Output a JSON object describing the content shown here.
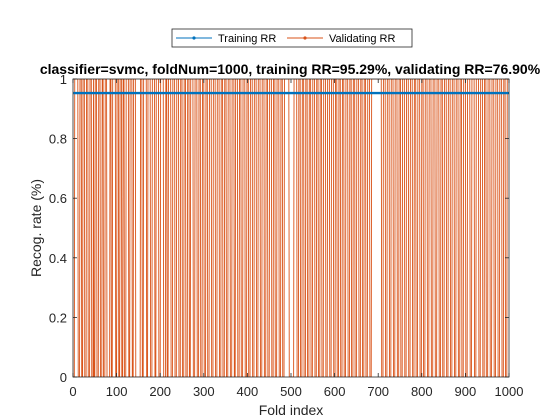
{
  "chart_data": {
    "type": "line",
    "title": "classifier=svmc, foldNum=1000, training RR=95.29%, validating RR=76.90%",
    "xlabel": "Fold index",
    "ylabel": "Recog. rate (%)",
    "xlim": [
      0,
      1000
    ],
    "ylim": [
      0,
      1
    ],
    "xticks": [
      0,
      100,
      200,
      300,
      400,
      500,
      600,
      700,
      800,
      900,
      1000
    ],
    "yticks": [
      0,
      0.2,
      0.4,
      0.6,
      0.8,
      1
    ],
    "xtick_labels": [
      "0",
      "100",
      "200",
      "300",
      "400",
      "500",
      "600",
      "700",
      "800",
      "900",
      "1000"
    ],
    "ytick_labels": [
      "0",
      "0.2",
      "0.4",
      "0.6",
      "0.8",
      "1"
    ],
    "grid": false,
    "legend_position": "top-center",
    "series": [
      {
        "name": "Training RR",
        "color": "#0072BD",
        "marker": "dot",
        "constant_value": 0.9529,
        "x_range": [
          1,
          1000
        ]
      },
      {
        "name": "Validating RR",
        "color": "#D95319",
        "marker": "dot",
        "values_are_binary": [
          0,
          1
        ],
        "zero_ranges": [
          [
            1,
            3
          ],
          [
            12,
            15
          ],
          [
            20,
            22
          ],
          [
            27,
            30
          ],
          [
            35,
            38
          ],
          [
            43,
            46
          ],
          [
            48,
            50
          ],
          [
            55,
            58
          ],
          [
            63,
            66
          ],
          [
            70,
            73
          ],
          [
            78,
            84
          ],
          [
            88,
            90
          ],
          [
            98,
            100
          ],
          [
            105,
            107
          ],
          [
            112,
            114
          ],
          [
            118,
            121
          ],
          [
            128,
            130
          ],
          [
            136,
            138
          ],
          [
            144,
            154
          ],
          [
            159,
            161
          ],
          [
            169,
            171
          ],
          [
            178,
            181
          ],
          [
            188,
            190
          ],
          [
            197,
            200
          ],
          [
            208,
            212
          ],
          [
            216,
            218
          ],
          [
            225,
            228
          ],
          [
            234,
            237
          ],
          [
            243,
            246
          ],
          [
            251,
            254
          ],
          [
            259,
            262
          ],
          [
            267,
            269
          ],
          [
            276,
            279
          ],
          [
            285,
            288
          ],
          [
            293,
            296
          ],
          [
            301,
            304
          ],
          [
            309,
            312
          ],
          [
            318,
            321
          ],
          [
            327,
            330
          ],
          [
            336,
            339
          ],
          [
            344,
            347
          ],
          [
            352,
            355
          ],
          [
            361,
            364
          ],
          [
            370,
            372
          ],
          [
            378,
            381
          ],
          [
            386,
            389
          ],
          [
            395,
            398
          ],
          [
            403,
            406
          ],
          [
            412,
            415
          ],
          [
            421,
            424
          ],
          [
            430,
            433
          ],
          [
            439,
            442
          ],
          [
            447,
            450
          ],
          [
            456,
            459
          ],
          [
            464,
            467
          ],
          [
            473,
            476
          ],
          [
            481,
            484
          ],
          [
            496,
            506
          ],
          [
            514,
            517
          ],
          [
            522,
            525
          ],
          [
            530,
            533
          ],
          [
            538,
            541
          ],
          [
            546,
            549
          ],
          [
            555,
            558
          ],
          [
            563,
            566
          ],
          [
            571,
            574
          ],
          [
            580,
            583
          ],
          [
            589,
            592
          ],
          [
            598,
            601
          ],
          [
            606,
            609
          ],
          [
            614,
            617
          ],
          [
            622,
            625
          ],
          [
            631,
            634
          ],
          [
            639,
            642
          ],
          [
            647,
            650
          ],
          [
            656,
            659
          ],
          [
            664,
            667
          ],
          [
            672,
            675
          ],
          [
            681,
            684
          ],
          [
            708,
            711
          ],
          [
            717,
            720
          ],
          [
            726,
            729
          ],
          [
            735,
            738
          ],
          [
            744,
            747
          ],
          [
            752,
            755
          ],
          [
            761,
            764
          ],
          [
            770,
            773
          ],
          [
            779,
            782
          ],
          [
            787,
            790
          ],
          [
            796,
            799
          ],
          [
            804,
            807
          ],
          [
            813,
            816
          ],
          [
            822,
            825
          ],
          [
            831,
            834
          ],
          [
            840,
            843
          ],
          [
            848,
            851
          ],
          [
            857,
            860
          ],
          [
            866,
            869
          ],
          [
            875,
            878
          ],
          [
            884,
            887
          ],
          [
            892,
            895
          ],
          [
            901,
            904
          ],
          [
            911,
            914
          ],
          [
            921,
            924
          ],
          [
            931,
            934
          ],
          [
            940,
            943
          ],
          [
            948,
            951
          ],
          [
            957,
            960
          ],
          [
            966,
            969
          ],
          [
            975,
            978
          ],
          [
            984,
            987
          ],
          [
            992,
            995
          ]
        ]
      }
    ]
  }
}
